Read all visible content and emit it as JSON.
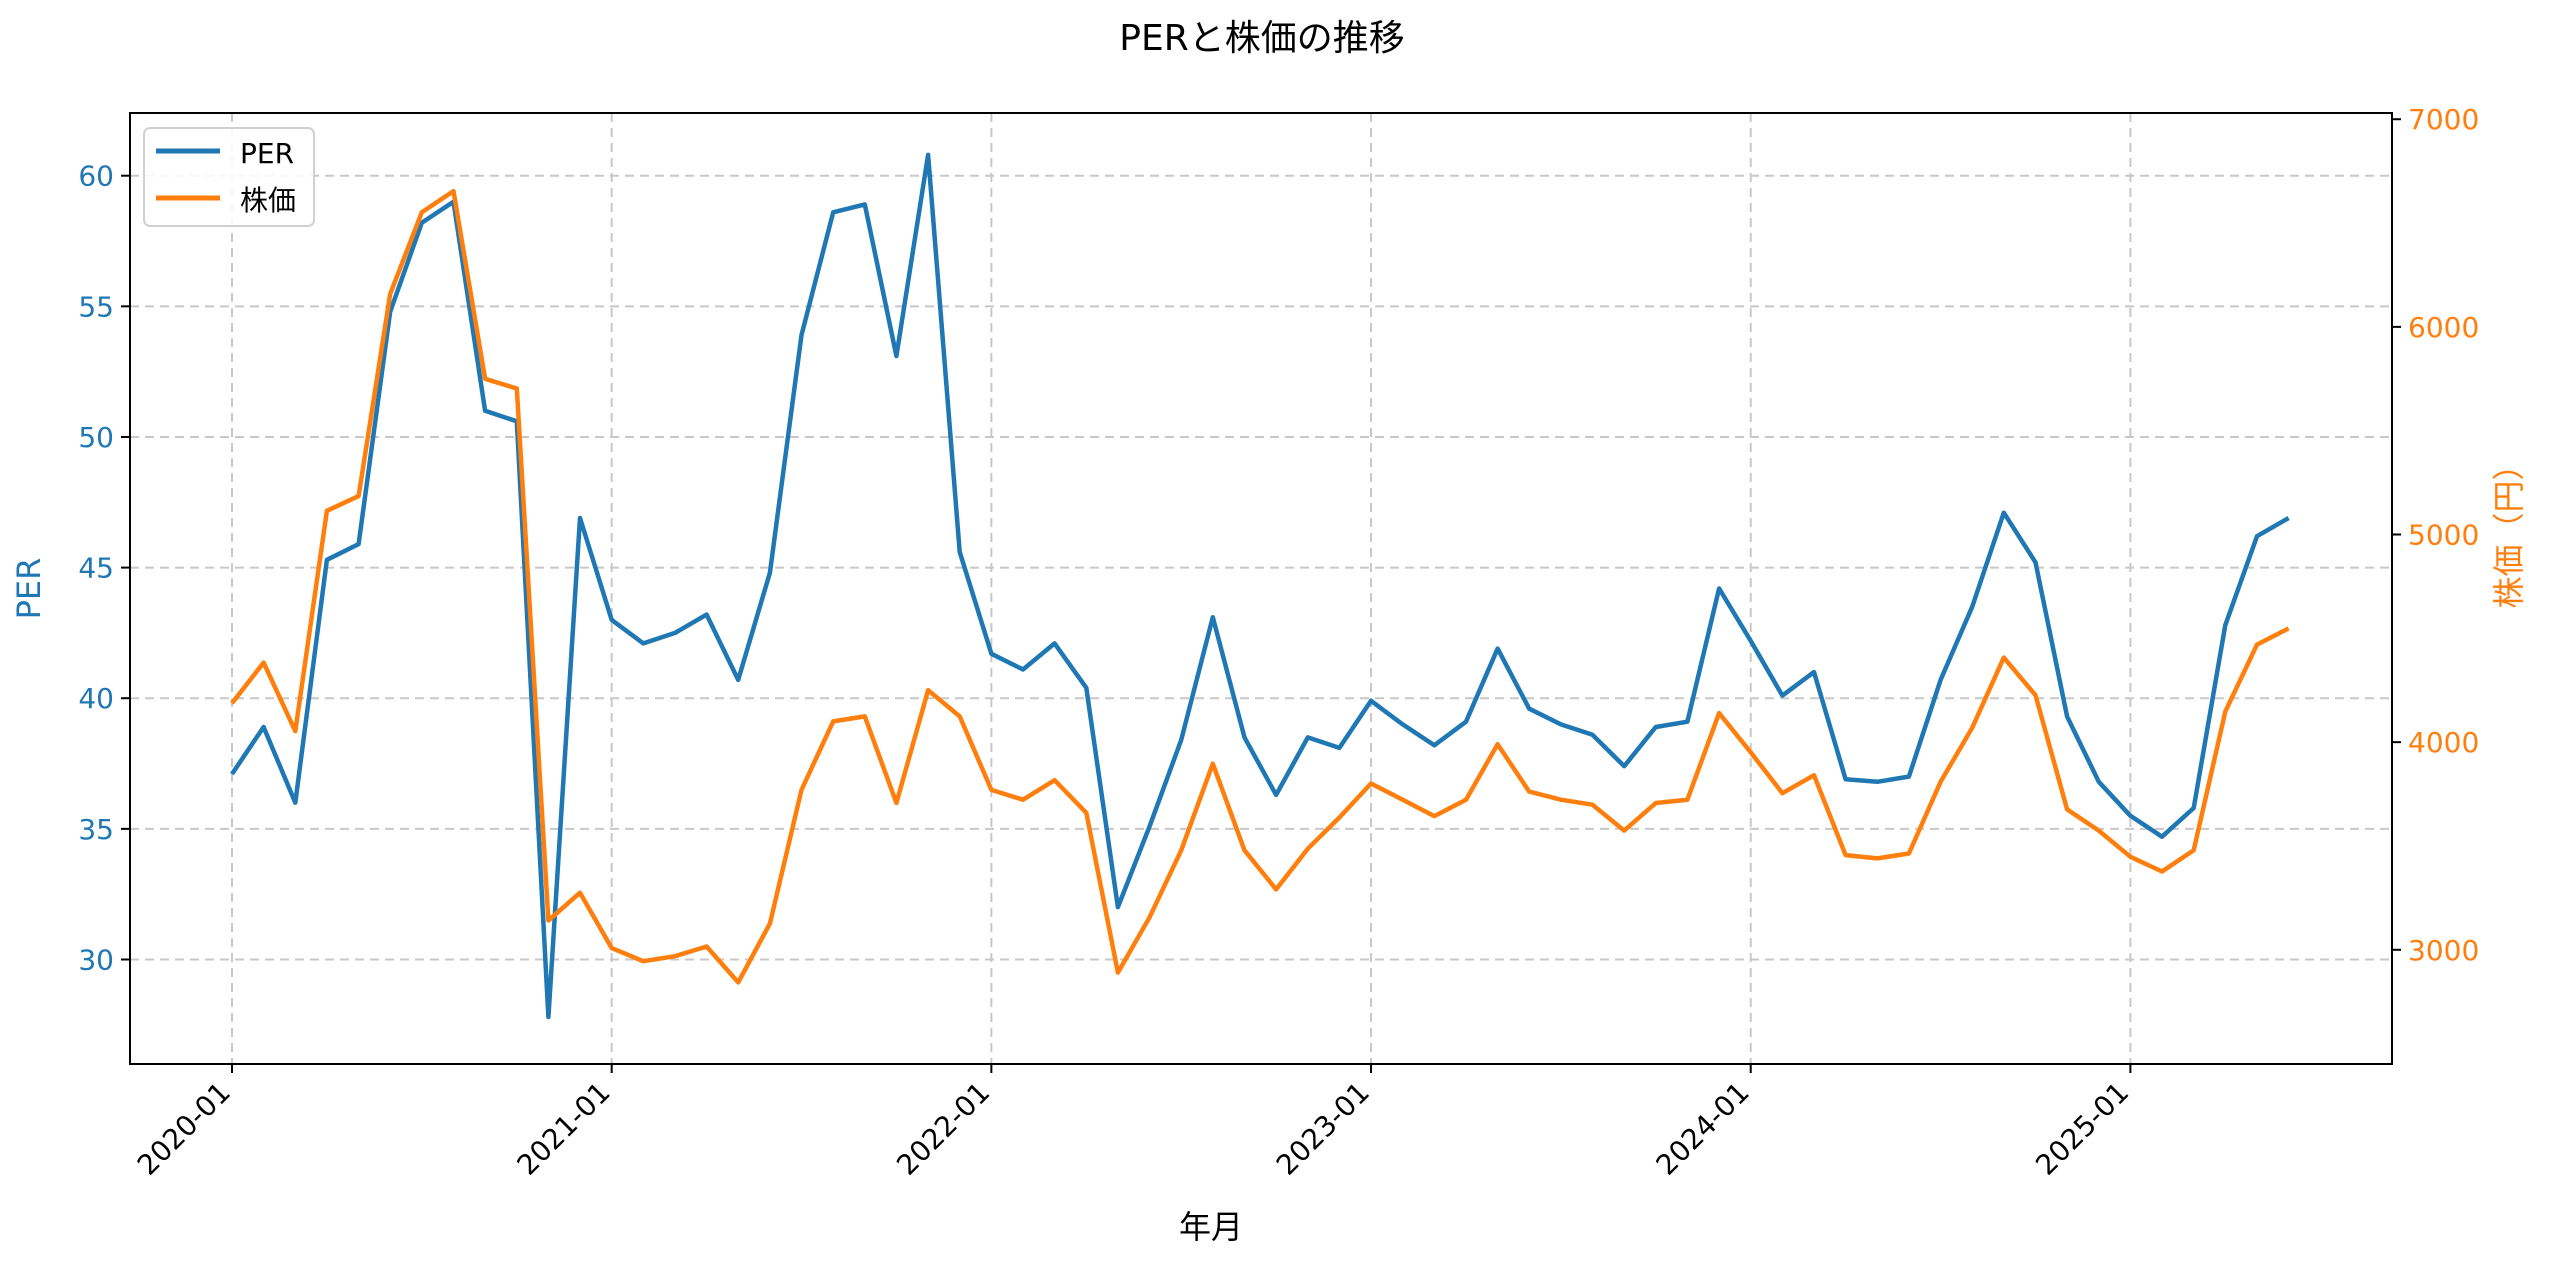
{
  "chart_data": {
    "type": "line",
    "title": "PERと株価の推移",
    "xlabel": "年月",
    "ylabel": "PER",
    "ylabel_right": "株価（円）",
    "y_ticks": [
      30,
      35,
      40,
      45,
      50,
      55,
      60
    ],
    "y_right_ticks": [
      3000,
      4000,
      5000,
      6000,
      7000
    ],
    "ylim": [
      26.0,
      62.4
    ],
    "ylim_right": [
      2450,
      7030
    ],
    "x_tick_labels": [
      "2020-01",
      "2021-01",
      "2022-01",
      "2023-01",
      "2024-01",
      "2025-01"
    ],
    "grid": true,
    "legend_position": "upper left",
    "x": [
      "2020-01",
      "2020-02",
      "2020-03",
      "2020-04",
      "2020-05",
      "2020-06",
      "2020-07",
      "2020-08",
      "2020-09",
      "2020-10",
      "2020-11",
      "2020-12",
      "2021-01",
      "2021-02",
      "2021-03",
      "2021-04",
      "2021-05",
      "2021-06",
      "2021-07",
      "2021-08",
      "2021-09",
      "2021-10",
      "2021-11",
      "2021-12",
      "2022-01",
      "2022-02",
      "2022-03",
      "2022-04",
      "2022-05",
      "2022-06",
      "2022-07",
      "2022-08",
      "2022-09",
      "2022-10",
      "2022-11",
      "2022-12",
      "2023-01",
      "2023-02",
      "2023-03",
      "2023-04",
      "2023-05",
      "2023-06",
      "2023-07",
      "2023-08",
      "2023-09",
      "2023-10",
      "2023-11",
      "2023-12",
      "2024-01",
      "2024-02",
      "2024-03",
      "2024-04",
      "2024-05",
      "2024-06",
      "2024-07",
      "2024-08",
      "2024-09",
      "2024-10",
      "2024-11",
      "2024-12",
      "2025-01",
      "2025-02",
      "2025-03",
      "2025-04",
      "2025-05",
      "2025-06"
    ],
    "series": [
      {
        "name": "PER",
        "axis": "left",
        "color": "#1f77b4",
        "values": [
          37.1,
          38.9,
          36.0,
          45.3,
          45.9,
          54.8,
          58.2,
          59.0,
          51.0,
          50.6,
          27.8,
          46.9,
          43.0,
          42.1,
          42.5,
          43.2,
          40.7,
          44.8,
          53.9,
          58.6,
          58.9,
          53.1,
          60.8,
          45.6,
          41.7,
          41.1,
          42.1,
          40.4,
          32.0,
          35.1,
          38.4,
          43.1,
          38.5,
          36.3,
          38.5,
          38.1,
          39.9,
          39.0,
          38.2,
          39.1,
          41.9,
          39.6,
          39.0,
          38.6,
          37.4,
          38.9,
          39.1,
          44.2,
          42.2,
          40.1,
          41.0,
          36.9,
          36.8,
          37.0,
          40.7,
          43.5,
          47.1,
          45.2,
          39.3,
          36.8,
          35.5,
          34.7,
          35.8,
          42.8,
          46.2,
          46.9
        ]
      },
      {
        "name": "株価",
        "axis": "right",
        "color": "#ff7f0e",
        "values": [
          4187,
          4383,
          4053,
          5114,
          5185,
          6159,
          6552,
          6654,
          5750,
          5703,
          3141,
          3275,
          3008,
          2945,
          2969,
          3016,
          2843,
          3126,
          3770,
          4100,
          4124,
          3707,
          4250,
          4124,
          3770,
          3723,
          3817,
          3660,
          2890,
          3157,
          3479,
          3896,
          3479,
          3291,
          3487,
          3637,
          3801,
          3723,
          3644,
          3723,
          3990,
          3762,
          3723,
          3699,
          3574,
          3707,
          3723,
          4140,
          3951,
          3754,
          3841,
          3456,
          3440,
          3464,
          3809,
          4069,
          4407,
          4226,
          3676,
          3574,
          3448,
          3377,
          3479,
          4147,
          4470,
          4548
        ]
      }
    ]
  },
  "colors": {
    "per": "#1f77b4",
    "price": "#ff7f0e",
    "grid": "#c8c8c8",
    "axis": "#000000"
  },
  "legend": {
    "items": [
      {
        "label": "PER",
        "color": "#1f77b4"
      },
      {
        "label": "株価",
        "color": "#ff7f0e"
      }
    ]
  }
}
